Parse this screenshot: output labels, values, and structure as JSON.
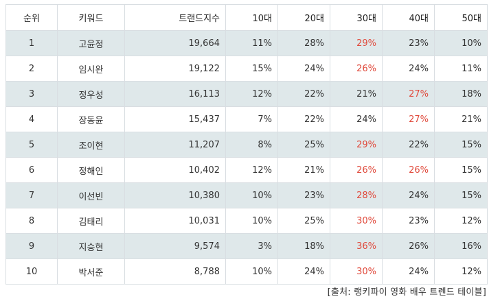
{
  "table": {
    "headers": [
      "순위",
      "키워드",
      "트랜드지수",
      "10대",
      "20대",
      "30대",
      "40대",
      "50대"
    ],
    "rows": [
      {
        "rank": "1",
        "keyword": "고윤정",
        "index": "19,664",
        "a10": "11%",
        "a20": "28%",
        "a30": "29%",
        "a40": "23%",
        "a50": "10%",
        "highlight": "a30"
      },
      {
        "rank": "2",
        "keyword": "임시완",
        "index": "19,122",
        "a10": "15%",
        "a20": "24%",
        "a30": "26%",
        "a40": "24%",
        "a50": "11%",
        "highlight": "a30"
      },
      {
        "rank": "3",
        "keyword": "정우성",
        "index": "16,113",
        "a10": "12%",
        "a20": "22%",
        "a30": "21%",
        "a40": "27%",
        "a50": "18%",
        "highlight": "a40"
      },
      {
        "rank": "4",
        "keyword": "장동윤",
        "index": "15,437",
        "a10": "7%",
        "a20": "22%",
        "a30": "24%",
        "a40": "27%",
        "a50": "21%",
        "highlight": "a40"
      },
      {
        "rank": "5",
        "keyword": "조이현",
        "index": "11,207",
        "a10": "8%",
        "a20": "25%",
        "a30": "29%",
        "a40": "22%",
        "a50": "15%",
        "highlight": "a30"
      },
      {
        "rank": "6",
        "keyword": "정해인",
        "index": "10,402",
        "a10": "12%",
        "a20": "21%",
        "a30": "26%",
        "a40": "26%",
        "a50": "15%",
        "highlight": "a30,a40"
      },
      {
        "rank": "7",
        "keyword": "이선빈",
        "index": "10,380",
        "a10": "10%",
        "a20": "23%",
        "a30": "28%",
        "a40": "24%",
        "a50": "15%",
        "highlight": "a30"
      },
      {
        "rank": "8",
        "keyword": "김태리",
        "index": "10,031",
        "a10": "10%",
        "a20": "25%",
        "a30": "30%",
        "a40": "23%",
        "a50": "12%",
        "highlight": "a30"
      },
      {
        "rank": "9",
        "keyword": "지승현",
        "index": "9,574",
        "a10": "3%",
        "a20": "18%",
        "a30": "36%",
        "a40": "26%",
        "a50": "16%",
        "highlight": "a30"
      },
      {
        "rank": "10",
        "keyword": "박서준",
        "index": "8,788",
        "a10": "10%",
        "a20": "24%",
        "a30": "30%",
        "a40": "24%",
        "a50": "12%",
        "highlight": "a30"
      }
    ]
  },
  "caption": "[출처: 랭키파이 영화 배우 트렌드 테이블]",
  "colors": {
    "row_alt_bg": "#dfe8ea",
    "highlight_text": "#e04a3c",
    "border": "#d9dee2"
  }
}
